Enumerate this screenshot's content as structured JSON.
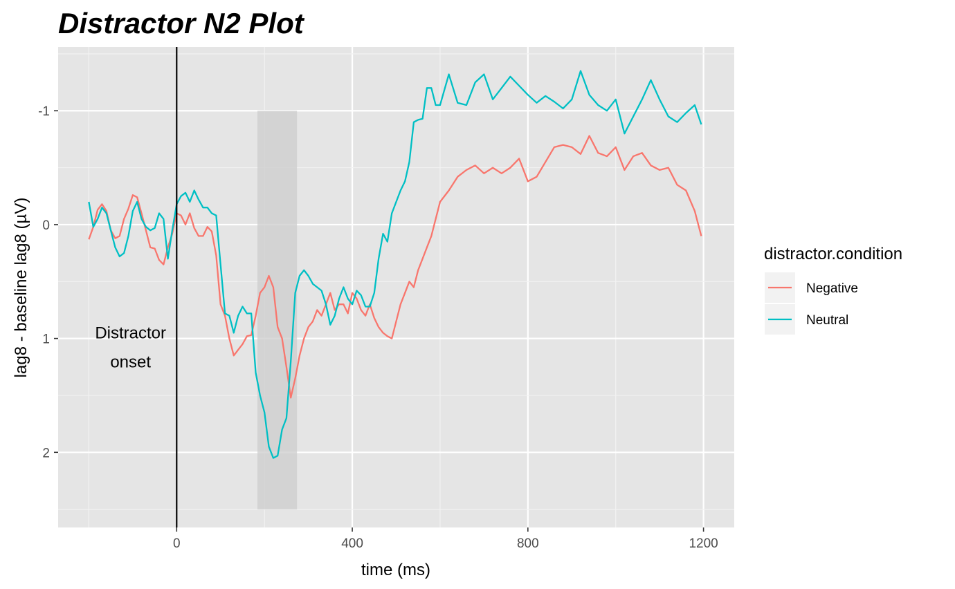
{
  "chart_data": {
    "type": "line",
    "title": "Distractor N2 Plot",
    "xlabel": "time (ms)",
    "ylabel": "lag8 - baseline lag8 (µV)",
    "xlim": [
      -270,
      1270
    ],
    "ylim": [
      2.66,
      -1.56
    ],
    "y_reversed": true,
    "x_ticks": [
      0,
      400,
      800,
      1200
    ],
    "y_ticks": [
      -1,
      0,
      1,
      2
    ],
    "x_tick_labels": [
      "0",
      "400",
      "800",
      "1200"
    ],
    "y_tick_labels": [
      "-1",
      "0",
      "1",
      "2"
    ],
    "grid": true,
    "legend": {
      "title": "distractor.condition",
      "position": "right"
    },
    "onset_line": {
      "x": 0,
      "color": "#000000"
    },
    "shaded_window": {
      "x0": 184,
      "x1": 274,
      "y0": -1.0,
      "y1": 2.5,
      "color": "#cccccc"
    },
    "annotation": {
      "lines": [
        "Distractor",
        "onset"
      ],
      "x": -105,
      "y": 1.12
    },
    "series": [
      {
        "name": "Negative",
        "color": "#F8766D",
        "x": [
          -200,
          -190,
          -180,
          -170,
          -160,
          -150,
          -140,
          -130,
          -120,
          -110,
          -100,
          -90,
          -80,
          -70,
          -60,
          -50,
          -40,
          -30,
          -20,
          -10,
          0,
          10,
          20,
          30,
          40,
          50,
          60,
          70,
          80,
          90,
          100,
          110,
          120,
          130,
          140,
          150,
          160,
          170,
          180,
          190,
          200,
          210,
          220,
          230,
          240,
          250,
          260,
          270,
          280,
          290,
          300,
          310,
          320,
          330,
          340,
          350,
          360,
          370,
          380,
          390,
          400,
          410,
          420,
          430,
          440,
          450,
          460,
          470,
          480,
          490,
          500,
          510,
          520,
          530,
          540,
          550,
          560,
          570,
          580,
          590,
          600,
          620,
          640,
          660,
          680,
          700,
          720,
          740,
          760,
          780,
          800,
          820,
          840,
          860,
          880,
          900,
          920,
          940,
          960,
          980,
          1000,
          1020,
          1040,
          1060,
          1080,
          1100,
          1120,
          1140,
          1160,
          1180,
          1195
        ],
        "y": [
          0.13,
          0.02,
          -0.13,
          -0.18,
          -0.12,
          0.05,
          0.12,
          0.1,
          -0.05,
          -0.14,
          -0.26,
          -0.24,
          -0.1,
          0.05,
          0.2,
          0.21,
          0.31,
          0.35,
          0.2,
          0.08,
          -0.1,
          -0.08,
          0.0,
          -0.1,
          0.03,
          0.1,
          0.1,
          0.02,
          0.06,
          0.27,
          0.7,
          0.8,
          1.0,
          1.15,
          1.1,
          1.05,
          0.98,
          0.97,
          0.8,
          0.6,
          0.55,
          0.45,
          0.55,
          0.9,
          1.0,
          1.25,
          1.52,
          1.35,
          1.15,
          1.0,
          0.9,
          0.85,
          0.75,
          0.8,
          0.7,
          0.6,
          0.75,
          0.7,
          0.7,
          0.78,
          0.6,
          0.65,
          0.75,
          0.8,
          0.7,
          0.82,
          0.9,
          0.95,
          0.98,
          1.0,
          0.85,
          0.7,
          0.6,
          0.5,
          0.55,
          0.4,
          0.3,
          0.2,
          0.1,
          -0.05,
          -0.2,
          -0.3,
          -0.42,
          -0.48,
          -0.52,
          -0.45,
          -0.5,
          -0.45,
          -0.5,
          -0.58,
          -0.38,
          -0.42,
          -0.55,
          -0.68,
          -0.7,
          -0.68,
          -0.62,
          -0.78,
          -0.63,
          -0.6,
          -0.68,
          -0.48,
          -0.6,
          -0.63,
          -0.52,
          -0.48,
          -0.5,
          -0.35,
          -0.3,
          -0.12,
          0.1
        ],
        "stroke_width": 2.3
      },
      {
        "name": "Neutral",
        "color": "#00BFC4",
        "x": [
          -200,
          -190,
          -180,
          -170,
          -160,
          -150,
          -140,
          -130,
          -120,
          -110,
          -100,
          -90,
          -80,
          -70,
          -60,
          -50,
          -40,
          -30,
          -20,
          -10,
          0,
          10,
          20,
          30,
          40,
          50,
          60,
          70,
          80,
          90,
          100,
          110,
          120,
          130,
          140,
          150,
          160,
          170,
          180,
          190,
          200,
          210,
          220,
          230,
          240,
          250,
          260,
          270,
          280,
          290,
          300,
          310,
          320,
          330,
          340,
          350,
          360,
          370,
          380,
          390,
          400,
          410,
          420,
          430,
          440,
          450,
          460,
          470,
          480,
          490,
          500,
          510,
          520,
          530,
          540,
          550,
          560,
          570,
          580,
          590,
          600,
          620,
          640,
          660,
          680,
          700,
          720,
          740,
          760,
          780,
          800,
          820,
          840,
          860,
          880,
          900,
          920,
          940,
          960,
          980,
          1000,
          1020,
          1040,
          1060,
          1080,
          1100,
          1120,
          1140,
          1160,
          1180,
          1195
        ],
        "y": [
          -0.2,
          0.02,
          -0.05,
          -0.15,
          -0.1,
          0.05,
          0.2,
          0.28,
          0.25,
          0.1,
          -0.12,
          -0.2,
          -0.05,
          0.02,
          0.05,
          0.03,
          -0.1,
          -0.05,
          0.3,
          0.05,
          -0.18,
          -0.25,
          -0.28,
          -0.2,
          -0.3,
          -0.22,
          -0.15,
          -0.15,
          -0.1,
          -0.08,
          0.35,
          0.78,
          0.8,
          0.95,
          0.8,
          0.72,
          0.78,
          0.78,
          1.3,
          1.5,
          1.65,
          1.95,
          2.05,
          2.03,
          1.8,
          1.7,
          1.2,
          0.6,
          0.45,
          0.4,
          0.45,
          0.52,
          0.55,
          0.58,
          0.7,
          0.88,
          0.8,
          0.65,
          0.55,
          0.65,
          0.7,
          0.58,
          0.62,
          0.72,
          0.72,
          0.6,
          0.3,
          0.08,
          0.15,
          -0.1,
          -0.2,
          -0.3,
          -0.38,
          -0.55,
          -0.9,
          -0.92,
          -0.93,
          -1.2,
          -1.2,
          -1.05,
          -1.05,
          -1.32,
          -1.07,
          -1.05,
          -1.25,
          -1.32,
          -1.1,
          -1.2,
          -1.3,
          -1.22,
          -1.14,
          -1.07,
          -1.13,
          -1.08,
          -1.02,
          -1.1,
          -1.35,
          -1.14,
          -1.05,
          -1.0,
          -1.1,
          -0.8,
          -0.95,
          -1.1,
          -1.27,
          -1.1,
          -0.95,
          -0.9,
          -0.98,
          -1.05,
          -0.88
        ],
        "stroke_width": 2.3
      }
    ]
  }
}
